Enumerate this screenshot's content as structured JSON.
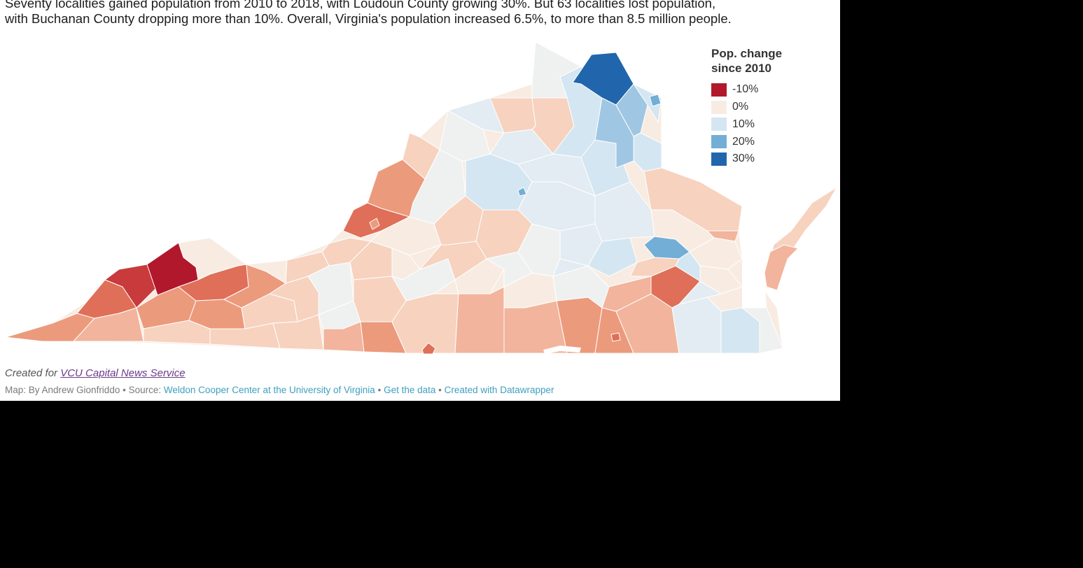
{
  "intro": {
    "line1": "Seventy localities gained population from 2010 to 2018, with Loudoun County growing 30%. But 63 localities lost population,",
    "line2": "with Buchanan County dropping more than 10%. Overall, Virginia's population increased 6.5%, to more than 8.5 million people."
  },
  "legend": {
    "title_line1": "Pop. change",
    "title_line2": "since 2010",
    "items": [
      {
        "label": "-10%",
        "color": "#b2182b"
      },
      {
        "label": "0%",
        "color": "#f8ece2"
      },
      {
        "label": "10%",
        "color": "#d4e6f1"
      },
      {
        "label": "20%",
        "color": "#72aed5"
      },
      {
        "label": "30%",
        "color": "#2166ac"
      }
    ]
  },
  "credit": {
    "prefix": "Created for",
    "link": "VCU Capital News Service"
  },
  "footer": {
    "map_by": "Map: By Andrew Gionfriddo",
    "sep": "•",
    "source_label": "Source:",
    "source_link": "Weldon Cooper Center at the University of Virginia",
    "get_data": "Get the data",
    "created_with": "Created with Datawrapper"
  },
  "map_colors": {
    "deep_red": "#b2182b",
    "red": "#c83a3c",
    "red_orange": "#df6f58",
    "orange": "#ec9a7c",
    "salmon": "#f2b49c",
    "peach": "#f7d2bf",
    "cream": "#f8ece2",
    "grey_white": "#eef1ef",
    "pale_blue": "#e2ecf2",
    "light_blue": "#d4e6f1",
    "mid_blue": "#9fc6e2",
    "blue": "#72aed5",
    "dark_blue": "#2166ac"
  }
}
